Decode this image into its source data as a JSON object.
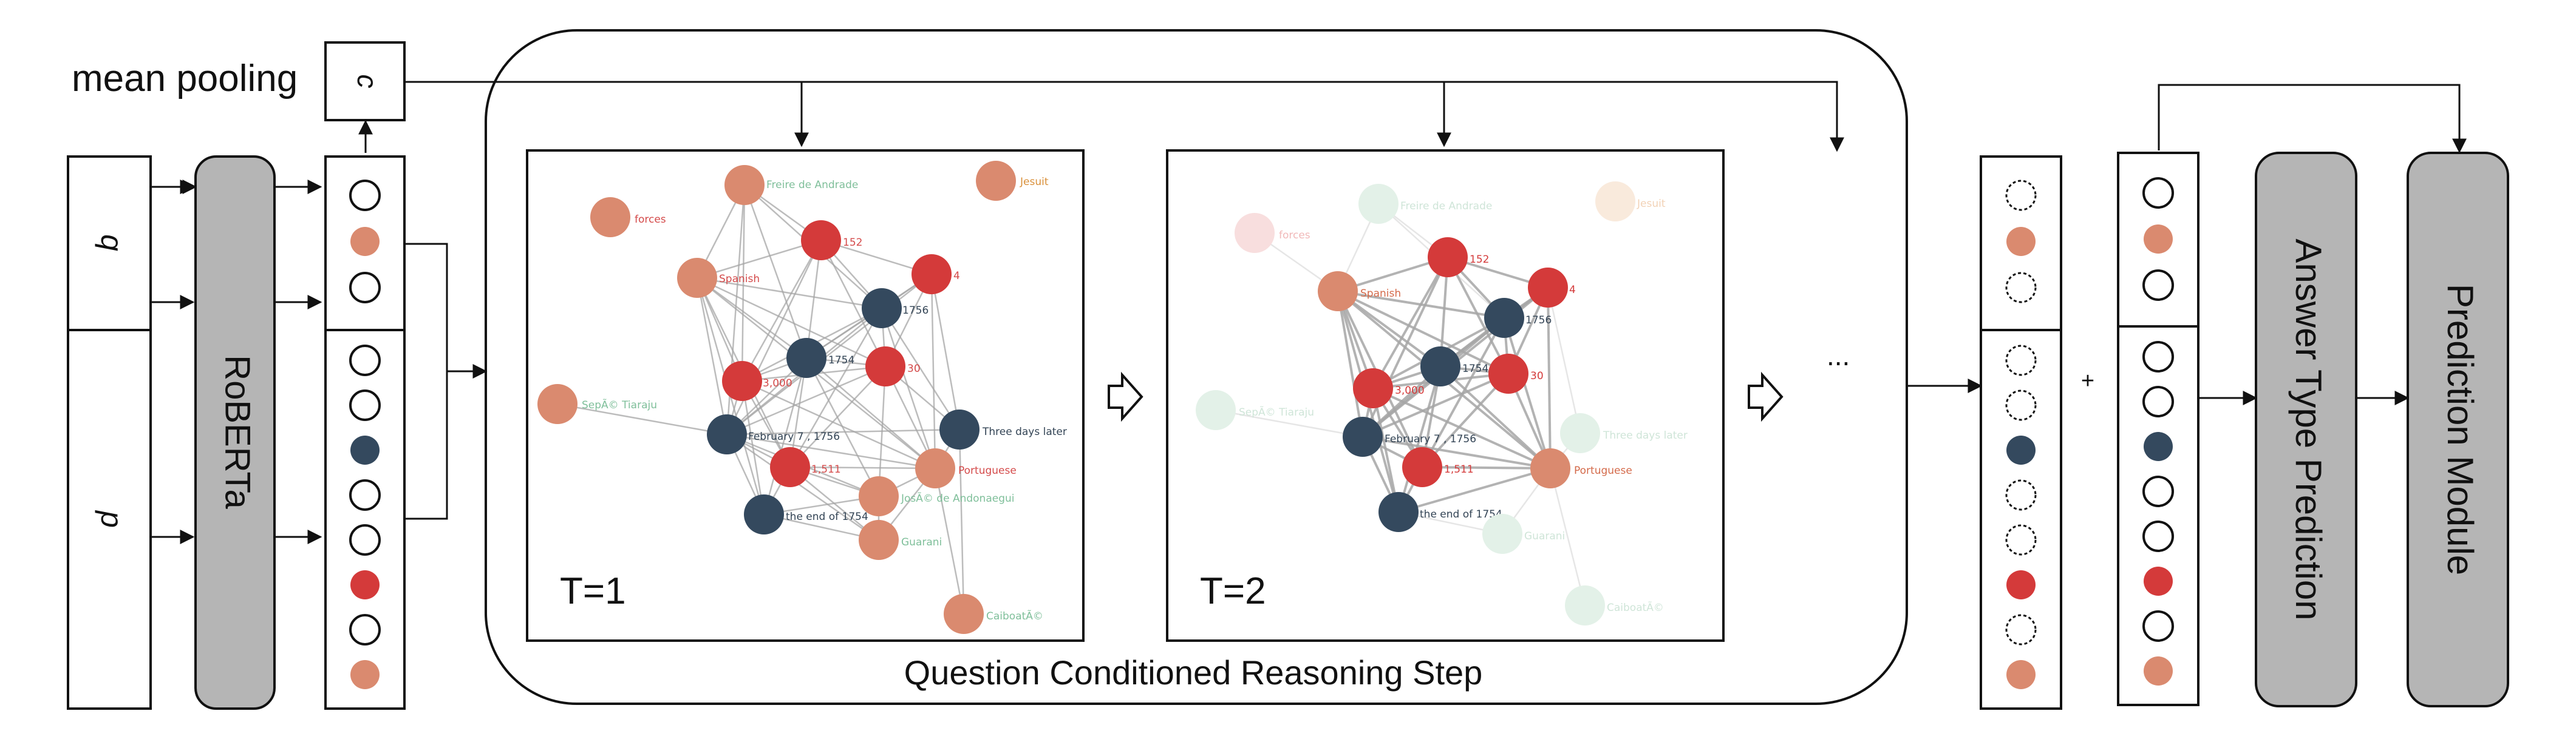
{
  "labels": {
    "mean_pooling": "mean pooling",
    "c": "c",
    "q": "q",
    "p": "p",
    "roberta": "RoBERTa",
    "t1": "T=1",
    "t2": "T=2",
    "reasoning_step": "Question Conditioned Reasoning Step",
    "ellipsis": "...",
    "plus": "+",
    "answer_type": "Answer Type Prediction",
    "prediction": "Prediction Module"
  },
  "colors": {
    "dark": "#34495e",
    "red": "#d43a3a",
    "orange": "#da8a6f",
    "gray_block": "#b5b5b5",
    "edge": "#a6a6a6"
  },
  "graph1": {
    "nodes": [
      {
        "id": "freire",
        "label": "Freire de Andrade",
        "type": "orange"
      },
      {
        "id": "jesuit",
        "label": "Jesuit",
        "type": "orange"
      },
      {
        "id": "forces",
        "label": "forces",
        "type": "orange"
      },
      {
        "id": "n152",
        "label": "152",
        "type": "red"
      },
      {
        "id": "n4",
        "label": "4",
        "type": "red"
      },
      {
        "id": "spanish",
        "label": "Spanish",
        "type": "orange"
      },
      {
        "id": "n1756",
        "label": "1756",
        "type": "dark"
      },
      {
        "id": "n1754",
        "label": "1754",
        "type": "dark"
      },
      {
        "id": "n30",
        "label": "30",
        "type": "red"
      },
      {
        "id": "n3000",
        "label": "3,000",
        "type": "red"
      },
      {
        "id": "sepe",
        "label": "SepÃ© Tiaraju",
        "type": "orange"
      },
      {
        "id": "feb",
        "label": "February 7 , 1756",
        "type": "dark"
      },
      {
        "id": "three",
        "label": "Three days later",
        "type": "dark"
      },
      {
        "id": "n1511",
        "label": "1,511",
        "type": "red"
      },
      {
        "id": "portuguese",
        "label": "Portuguese",
        "type": "orange"
      },
      {
        "id": "jose",
        "label": "JosÃ© de Andonaegui",
        "type": "orange"
      },
      {
        "id": "end1754",
        "label": "the end of 1754",
        "type": "dark"
      },
      {
        "id": "guarani",
        "label": "Guarani",
        "type": "orange"
      },
      {
        "id": "caiboate",
        "label": "CaiboatÃ©",
        "type": "orange"
      }
    ]
  },
  "graph2": {
    "nodes": [
      {
        "id": "forces",
        "label": "forces",
        "type": "red",
        "faded": true
      },
      {
        "id": "freire",
        "label": "Freire de Andrade",
        "type": "green",
        "faded": true
      },
      {
        "id": "jesuit",
        "label": "Jesuit",
        "type": "orange",
        "faded": true
      },
      {
        "id": "n152",
        "label": "152",
        "type": "red",
        "faded": false
      },
      {
        "id": "n4",
        "label": "4",
        "type": "red",
        "faded": false
      },
      {
        "id": "spanish",
        "label": "Spanish",
        "type": "orange",
        "faded": false
      },
      {
        "id": "n1756",
        "label": "1756",
        "type": "dark",
        "faded": false
      },
      {
        "id": "sepe",
        "label": "SepÃ© Tiaraju",
        "type": "green",
        "faded": true
      },
      {
        "id": "n1754",
        "label": "1754",
        "type": "dark",
        "faded": false
      },
      {
        "id": "n30",
        "label": "30",
        "type": "red",
        "faded": false
      },
      {
        "id": "n3000",
        "label": "3,000",
        "type": "red",
        "faded": false
      },
      {
        "id": "three",
        "label": "Three days later",
        "type": "green",
        "faded": true
      },
      {
        "id": "feb",
        "label": "February 7 , 1756",
        "type": "dark",
        "faded": false
      },
      {
        "id": "n1511",
        "label": "1,511",
        "type": "red",
        "faded": false
      },
      {
        "id": "portuguese",
        "label": "Portuguese",
        "type": "orange",
        "faded": false
      },
      {
        "id": "end1754",
        "label": "the end of 1754",
        "type": "dark",
        "faded": false
      },
      {
        "id": "guarani",
        "label": "Guarani",
        "type": "green",
        "faded": true
      },
      {
        "id": "caiboate",
        "label": "CaiboatÃ©",
        "type": "green",
        "faded": true
      }
    ]
  },
  "columns": {
    "encoder_q": [
      "open",
      "orange",
      "open"
    ],
    "encoder_p": [
      "open",
      "open",
      "dark",
      "open",
      "open",
      "red",
      "open",
      "orange"
    ],
    "updated_q": [
      "dashed",
      "orange",
      "dashed"
    ],
    "updated_p": [
      "dashed",
      "dashed",
      "dark",
      "dashed",
      "dashed",
      "red",
      "dashed",
      "orange"
    ],
    "final_q": [
      "open",
      "orange",
      "open"
    ],
    "final_p": [
      "open",
      "open",
      "dark",
      "open",
      "open",
      "red",
      "open",
      "orange"
    ]
  }
}
